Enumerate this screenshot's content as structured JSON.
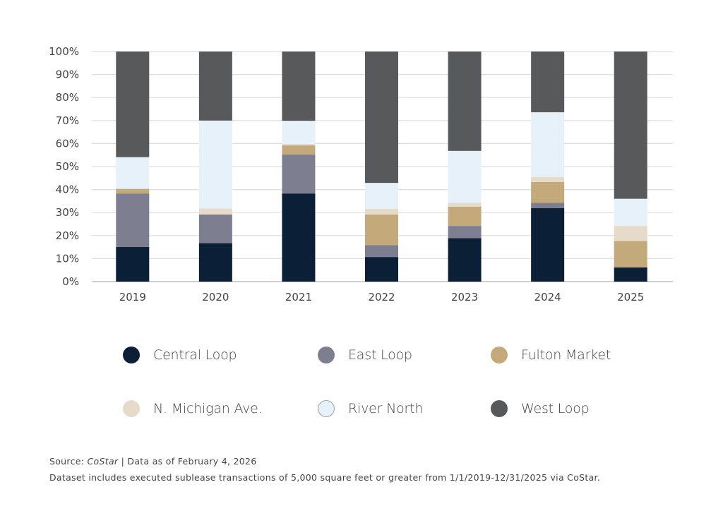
{
  "chart_data": {
    "type": "bar",
    "stacked": true,
    "title": "",
    "xlabel": "",
    "ylabel": "",
    "ylim": [
      0,
      100
    ],
    "y_ticks": [
      "0%",
      "10%",
      "20%",
      "30%",
      "40%",
      "50%",
      "60%",
      "70%",
      "80%",
      "90%",
      "100%"
    ],
    "grid": true,
    "legend_position": "bottom",
    "categories": [
      "2019",
      "2020",
      "2021",
      "2022",
      "2023",
      "2024",
      "2025"
    ],
    "series": [
      {
        "name": "Central Loop",
        "color": "#0b1f36",
        "values": [
          15.1,
          16.7,
          38.3,
          10.7,
          18.9,
          31.9,
          6.2
        ]
      },
      {
        "name": "East Loop",
        "color": "#7d7f91",
        "values": [
          23.2,
          12.5,
          17.0,
          5.2,
          5.3,
          2.4,
          0.0
        ]
      },
      {
        "name": "Fulton Market",
        "color": "#c4a97b",
        "values": [
          2.0,
          0.0,
          3.9,
          13.3,
          8.4,
          9.0,
          11.5
        ]
      },
      {
        "name": "N. Michigan Ave.",
        "color": "#e6dac8",
        "values": [
          0.0,
          2.6,
          0.6,
          2.4,
          1.7,
          2.2,
          6.5
        ]
      },
      {
        "name": "River North",
        "color": "#e6f1fa",
        "values": [
          13.8,
          38.2,
          10.1,
          11.3,
          22.5,
          28.1,
          11.8
        ]
      },
      {
        "name": "West Loop",
        "color": "#58595b",
        "values": [
          45.9,
          30.0,
          30.1,
          57.1,
          43.2,
          26.4,
          64.0
        ]
      }
    ]
  },
  "footer": {
    "source_prefix": "Source: ",
    "source_name": "CoStar",
    "source_suffix": " | Data as of February 4, 2026",
    "note": "Dataset includes executed sublease transactions of 5,000 square feet or greater from 1/1/2019-12/31/2025 via CoStar."
  }
}
